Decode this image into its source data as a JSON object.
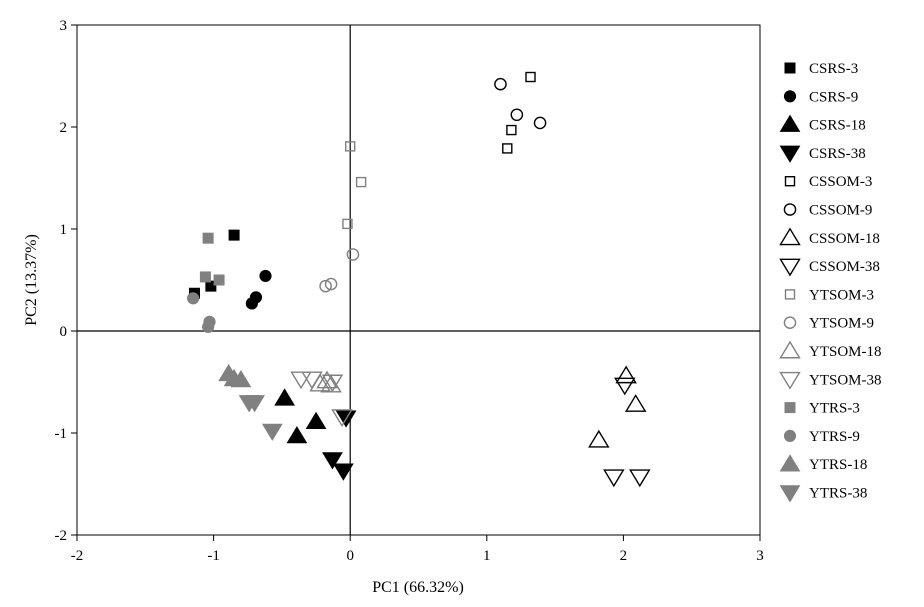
{
  "chart_data": {
    "type": "scatter",
    "xlabel": "PC1 (66.32%)",
    "ylabel": "PC2 (13.37%)",
    "xlim": [
      -2,
      3
    ],
    "ylim": [
      -2,
      3
    ],
    "xticks": [
      "-2",
      "-1",
      "0",
      "1",
      "2",
      "3"
    ],
    "yticks": [
      "-2",
      "-1",
      "0",
      "1",
      "2",
      "3"
    ],
    "grid": false,
    "zero_lines": true,
    "legend_position": "right",
    "series": [
      {
        "name": "CSRS-3",
        "marker": "square",
        "filled": true,
        "color": "#000000",
        "points": [
          [
            -1.14,
            0.37
          ],
          [
            -1.02,
            0.44
          ],
          [
            -0.85,
            0.94
          ]
        ]
      },
      {
        "name": "CSRS-9",
        "marker": "circle",
        "filled": true,
        "color": "#000000",
        "points": [
          [
            -0.72,
            0.27
          ],
          [
            -0.69,
            0.33
          ],
          [
            -0.62,
            0.54
          ]
        ]
      },
      {
        "name": "CSRS-18",
        "marker": "triangle-up",
        "filled": true,
        "color": "#000000",
        "points": [
          [
            -0.48,
            -0.66
          ],
          [
            -0.39,
            -1.03
          ],
          [
            -0.25,
            -0.89
          ]
        ]
      },
      {
        "name": "CSRS-38",
        "marker": "triangle-down",
        "filled": true,
        "color": "#000000",
        "points": [
          [
            -0.13,
            -1.26
          ],
          [
            -0.05,
            -1.37
          ],
          [
            -0.03,
            -0.85
          ]
        ]
      },
      {
        "name": "CSSOM-3",
        "marker": "square",
        "filled": false,
        "color": "#000000",
        "points": [
          [
            1.15,
            1.79
          ],
          [
            1.18,
            1.97
          ],
          [
            1.32,
            2.49
          ]
        ]
      },
      {
        "name": "CSSOM-9",
        "marker": "circle",
        "filled": false,
        "color": "#000000",
        "points": [
          [
            1.1,
            2.42
          ],
          [
            1.22,
            2.12
          ],
          [
            1.39,
            2.04
          ]
        ]
      },
      {
        "name": "CSSOM-18",
        "marker": "triangle-up",
        "filled": false,
        "color": "#000000",
        "points": [
          [
            1.82,
            -1.07
          ],
          [
            2.02,
            -0.44
          ],
          [
            2.09,
            -0.72
          ]
        ]
      },
      {
        "name": "CSSOM-38",
        "marker": "triangle-down",
        "filled": false,
        "color": "#000000",
        "points": [
          [
            1.93,
            -1.43
          ],
          [
            2.01,
            -0.53
          ],
          [
            2.12,
            -1.43
          ]
        ]
      },
      {
        "name": "YTSOM-3",
        "marker": "square",
        "filled": false,
        "color": "#808080",
        "points": [
          [
            -0.02,
            1.05
          ],
          [
            0.0,
            1.81
          ],
          [
            0.08,
            1.46
          ]
        ]
      },
      {
        "name": "YTSOM-9",
        "marker": "circle",
        "filled": false,
        "color": "#808080",
        "points": [
          [
            -0.18,
            0.44
          ],
          [
            -0.14,
            0.46
          ],
          [
            0.02,
            0.75
          ]
        ]
      },
      {
        "name": "YTSOM-18",
        "marker": "triangle-up",
        "filled": false,
        "color": "#808080",
        "points": [
          [
            -0.22,
            -0.52
          ],
          [
            -0.17,
            -0.49
          ],
          [
            -0.14,
            -0.53
          ]
        ]
      },
      {
        "name": "YTSOM-38",
        "marker": "triangle-down",
        "filled": false,
        "color": "#808080",
        "points": [
          [
            -0.36,
            -0.47
          ],
          [
            -0.28,
            -0.47
          ],
          [
            -0.13,
            -0.5
          ],
          [
            -0.06,
            -0.84
          ]
        ]
      },
      {
        "name": "YTRS-3",
        "marker": "square",
        "filled": true,
        "color": "#808080",
        "points": [
          [
            -1.06,
            0.53
          ],
          [
            -1.04,
            0.91
          ],
          [
            -0.96,
            0.5
          ]
        ]
      },
      {
        "name": "YTRS-9",
        "marker": "circle",
        "filled": true,
        "color": "#808080",
        "points": [
          [
            -1.15,
            0.32
          ],
          [
            -1.04,
            0.04
          ],
          [
            -1.03,
            0.09
          ]
        ]
      },
      {
        "name": "YTRS-18",
        "marker": "triangle-up",
        "filled": true,
        "color": "#808080",
        "points": [
          [
            -0.89,
            -0.42
          ],
          [
            -0.85,
            -0.47
          ],
          [
            -0.8,
            -0.48
          ]
        ]
      },
      {
        "name": "YTRS-38",
        "marker": "triangle-down",
        "filled": true,
        "color": "#808080",
        "points": [
          [
            -0.74,
            -0.7
          ],
          [
            -0.7,
            -0.7
          ],
          [
            -0.57,
            -0.98
          ]
        ]
      }
    ]
  }
}
